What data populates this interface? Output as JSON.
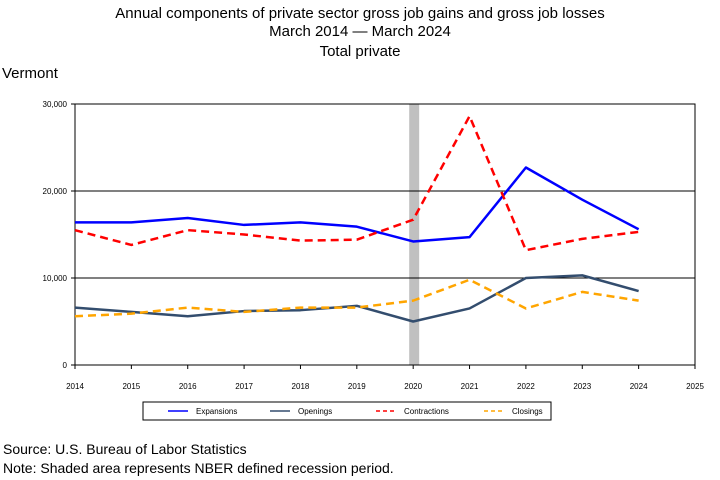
{
  "title": {
    "line1": "Annual components of private sector gross job gains and gross job losses",
    "line2": "March 2014 — March 2024",
    "line3": "Total private"
  },
  "region_label": "Vermont",
  "footer": {
    "source": "Source: U.S. Bureau of Labor Statistics",
    "note": "Note: Shaded area represents NBER defined recession period."
  },
  "chart_data": {
    "type": "line",
    "x": [
      2014,
      2015,
      2016,
      2017,
      2018,
      2019,
      2020,
      2021,
      2022,
      2023,
      2024
    ],
    "x_ticks": [
      "2014",
      "2015",
      "2016",
      "2017",
      "2018",
      "2019",
      "2020",
      "2021",
      "2022",
      "2023",
      "2024",
      "2025"
    ],
    "y_ticks": [
      "0",
      "10,000",
      "20,000",
      "30,000"
    ],
    "xlim": [
      2014,
      2025
    ],
    "ylim": [
      0,
      30000
    ],
    "grid": "horizontal at 10,000 and 20,000",
    "recession_shading": {
      "from": 2020,
      "to": 2020.2,
      "color": "#c0c0c0"
    },
    "legend_position": "bottom",
    "series": [
      {
        "name": "Expansions",
        "color": "#0000ff",
        "style": "solid",
        "values": [
          16400,
          16400,
          16900,
          16100,
          16400,
          15900,
          14200,
          14700,
          22700,
          19000,
          15600
        ]
      },
      {
        "name": "Openings",
        "color": "#334d6e",
        "style": "solid",
        "values": [
          6600,
          6100,
          5600,
          6200,
          6300,
          6800,
          5000,
          6500,
          10000,
          10300,
          8500
        ]
      },
      {
        "name": "Contractions",
        "color": "#ff0000",
        "style": "dashed",
        "values": [
          15500,
          13800,
          15500,
          15000,
          14300,
          14400,
          16700,
          28600,
          13200,
          14500,
          15300
        ]
      },
      {
        "name": "Closings",
        "color": "#ffa500",
        "style": "dashed",
        "values": [
          5600,
          5900,
          6600,
          6100,
          6600,
          6600,
          7400,
          9800,
          6500,
          8400,
          7400
        ]
      }
    ]
  }
}
